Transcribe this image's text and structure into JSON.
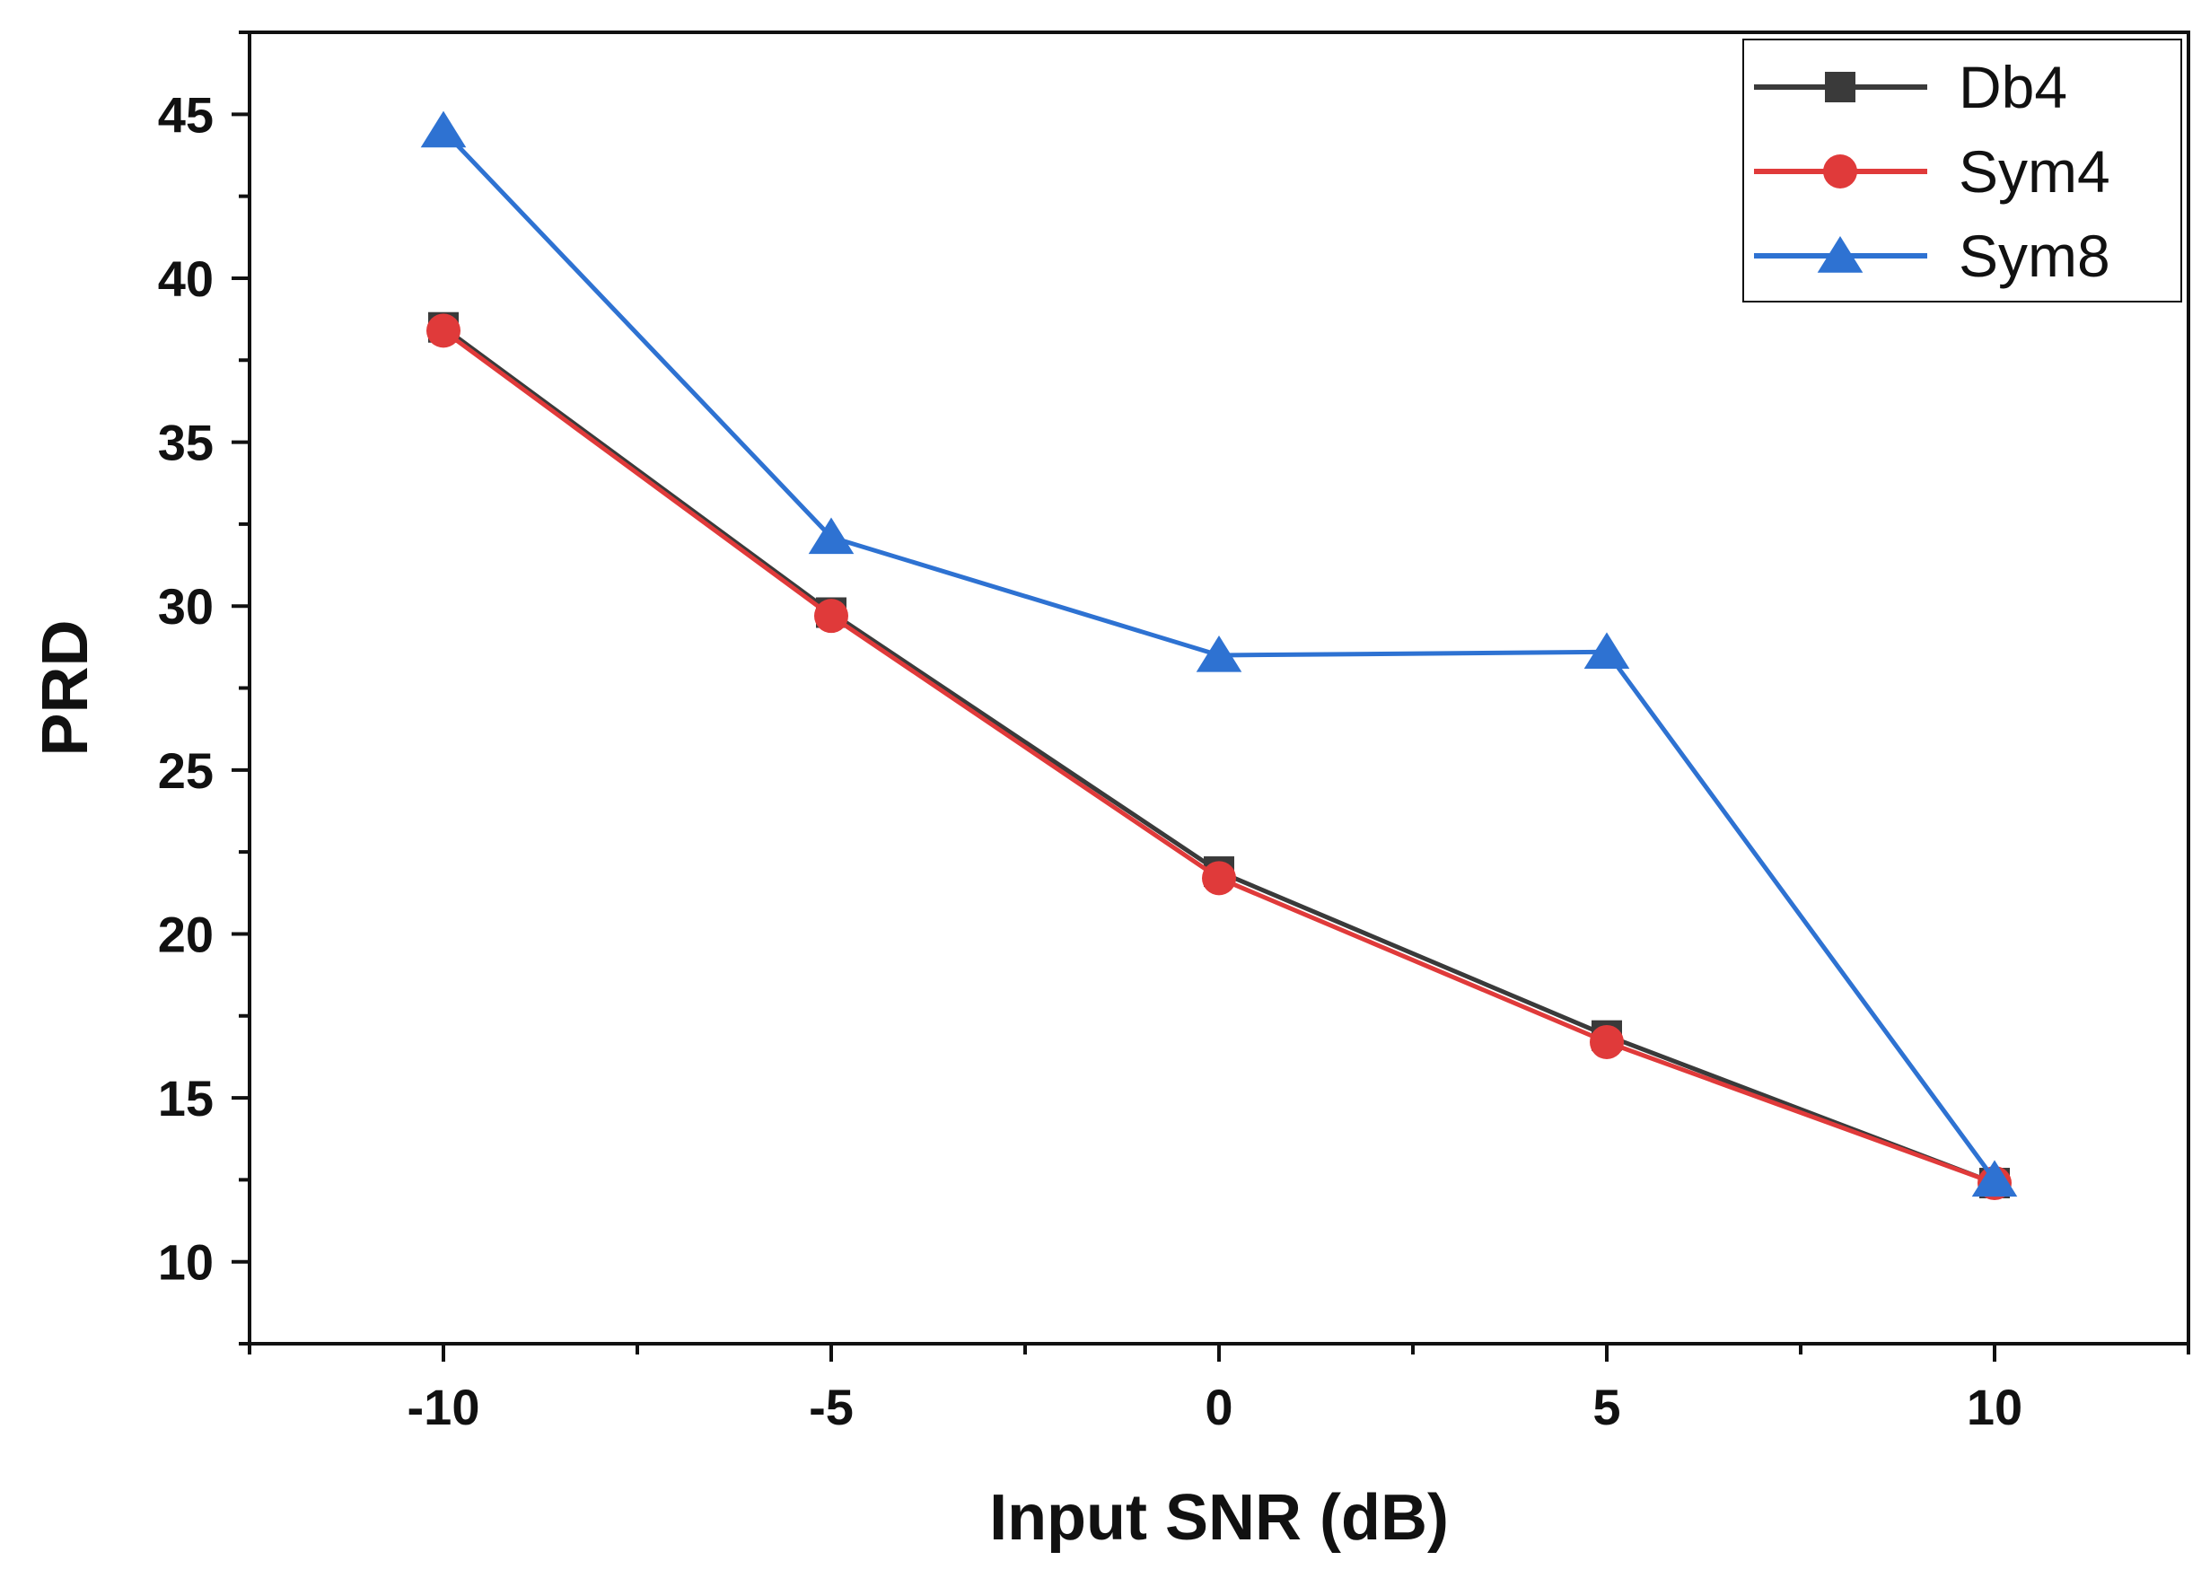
{
  "chart_data": {
    "type": "line",
    "title": "",
    "xlabel": "Input SNR (dB)",
    "ylabel": "PRD",
    "x": [
      -10,
      -5,
      0,
      5,
      10
    ],
    "xlim": [
      -12.5,
      12.5
    ],
    "ylim": [
      7.5,
      47.5
    ],
    "xticks": [
      -10,
      -5,
      0,
      5,
      10
    ],
    "yticks": [
      10,
      15,
      20,
      25,
      30,
      35,
      40,
      45
    ],
    "grid": false,
    "legend_position": "top-right",
    "series": [
      {
        "name": "Db4",
        "color": "#3a3a3a",
        "marker": "square",
        "values": [
          38.5,
          29.8,
          21.9,
          16.9,
          12.4
        ]
      },
      {
        "name": "Sym4",
        "color": "#e03a3a",
        "marker": "circle",
        "values": [
          38.4,
          29.7,
          21.7,
          16.7,
          12.4
        ]
      },
      {
        "name": "Sym8",
        "color": "#2e72d2",
        "marker": "triangle",
        "values": [
          44.5,
          32.1,
          28.5,
          28.6,
          12.5
        ]
      }
    ]
  }
}
